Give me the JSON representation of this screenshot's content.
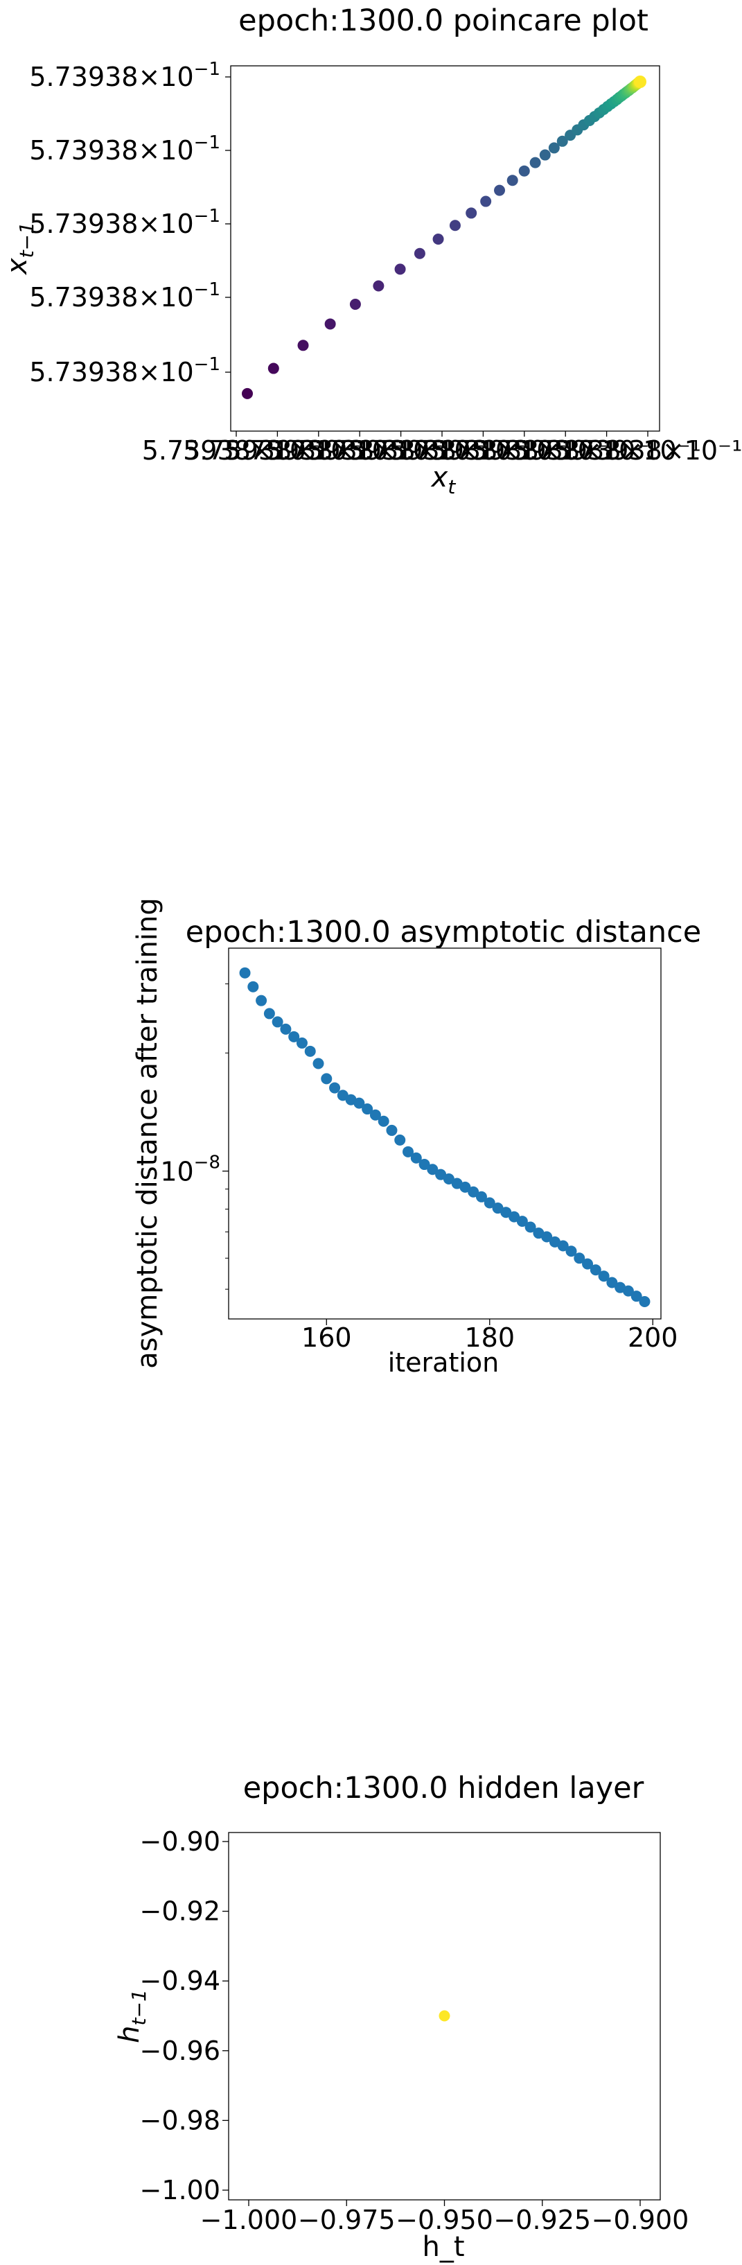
{
  "chart_data": [
    {
      "type": "scatter",
      "title": "epoch:1300.0 poincare plot",
      "xlabel": "x_t",
      "ylabel": "x_{t-1}",
      "xlabel_main": "x",
      "xlabel_sub": "t",
      "ylabel_main": "x",
      "ylabel_sub": "t−1",
      "x": [
        0.0,
        0.0667,
        0.142,
        0.211,
        0.275,
        0.334,
        0.389,
        0.439,
        0.486,
        0.529,
        0.57,
        0.607,
        0.642,
        0.675,
        0.705,
        0.733,
        0.758,
        0.781,
        0.802,
        0.822,
        0.84,
        0.856,
        0.871,
        0.884,
        0.896,
        0.907,
        0.917,
        0.926,
        0.934,
        0.941,
        0.947,
        0.953,
        0.958,
        0.963,
        0.967,
        0.971,
        0.974,
        0.977,
        0.98,
        0.982,
        0.984,
        0.986,
        0.988,
        0.99,
        0.992,
        0.993,
        0.995,
        0.996,
        0.998,
        1.0
      ],
      "y": [
        0.0667,
        0.142,
        0.211,
        0.275,
        0.334,
        0.389,
        0.439,
        0.486,
        0.529,
        0.57,
        0.607,
        0.642,
        0.675,
        0.705,
        0.733,
        0.758,
        0.781,
        0.802,
        0.822,
        0.84,
        0.856,
        0.871,
        0.884,
        0.896,
        0.907,
        0.917,
        0.926,
        0.934,
        0.941,
        0.947,
        0.953,
        0.958,
        0.963,
        0.967,
        0.971,
        0.974,
        0.977,
        0.98,
        0.982,
        0.984,
        0.986,
        0.988,
        0.99,
        0.992,
        0.993,
        0.995,
        0.996,
        0.998,
        0.999,
        1.0
      ],
      "x_tick_labels": [
        "5.73938×10⁻¹",
        "5.73938×10⁻¹",
        "5.73938×10⁻¹",
        "5.73938×10⁻¹",
        "5.73938×10⁻¹",
        "5.73938×10⁻¹",
        "5.73938×10⁻¹",
        "5.73938×10⁻¹",
        "5.73938×10⁻¹",
        "5.73938×10⁻¹",
        "5.73938×10⁻¹"
      ],
      "y_tick_mantissa": "5.73938",
      "y_tick_exponent": "−1",
      "y_tick_count": 5,
      "colormap": "viridis"
    },
    {
      "type": "scatter",
      "title": "epoch:1300.0 asymptotic distance",
      "xlabel": "iteration",
      "ylabel": "asymptotic distance after training",
      "xlim": [
        148,
        201
      ],
      "log_y": true,
      "ylim": [
        4.2e-09,
        3.7e-08
      ],
      "x_ticks": [
        160,
        180,
        200
      ],
      "x_tick_labels": [
        "160",
        "180",
        "200"
      ],
      "y_tick_base": "10",
      "y_tick_exp": "−8",
      "color": "#1f77b4",
      "x": [
        150,
        151,
        152,
        153,
        154,
        155,
        156,
        157,
        158,
        159,
        160,
        161,
        162,
        163,
        164,
        165,
        166,
        167,
        168,
        169,
        170,
        171,
        172,
        173,
        174,
        175,
        176,
        177,
        178,
        179,
        180,
        181,
        182,
        183,
        184,
        185,
        186,
        187,
        188,
        189,
        190,
        191,
        192,
        193,
        194,
        195,
        196,
        197,
        198,
        199
      ],
      "y": [
        3.2e-08,
        2.95e-08,
        2.72e-08,
        2.52e-08,
        2.4e-08,
        2.3e-08,
        2.2e-08,
        2.12e-08,
        2.02e-08,
        1.88e-08,
        1.72e-08,
        1.63e-08,
        1.56e-08,
        1.52e-08,
        1.49e-08,
        1.44e-08,
        1.39e-08,
        1.34e-08,
        1.27e-08,
        1.2e-08,
        1.12e-08,
        1.08e-08,
        1.04e-08,
        1.01e-08,
        9.8e-09,
        9.55e-09,
        9.3e-09,
        9.1e-09,
        8.85e-09,
        8.6e-09,
        8.3e-09,
        8.05e-09,
        7.85e-09,
        7.65e-09,
        7.45e-09,
        7.2e-09,
        6.95e-09,
        6.8e-09,
        6.6e-09,
        6.45e-09,
        6.25e-09,
        6e-09,
        5.8e-09,
        5.6e-09,
        5.4e-09,
        5.2e-09,
        5.05e-09,
        4.95e-09,
        4.8e-09,
        4.65e-09
      ]
    },
    {
      "type": "scatter",
      "title": "epoch:1300.0 hidden layer",
      "xlabel": "h_t",
      "ylabel": "h_{t-1}",
      "ylabel_main": "h",
      "ylabel_sub": "t−1",
      "xlim": [
        -1.0,
        -0.9
      ],
      "ylim": [
        -1.0,
        -0.9
      ],
      "x_ticks": [
        -1.0,
        -0.975,
        -0.95,
        -0.925,
        -0.9
      ],
      "x_tick_labels": [
        "−1.000",
        "−0.975",
        "−0.950",
        "−0.925",
        "−0.900"
      ],
      "y_ticks": [
        -1.0,
        -0.98,
        -0.96,
        -0.94,
        -0.92,
        -0.9
      ],
      "y_tick_labels": [
        "−1.00",
        "−0.98",
        "−0.96",
        "−0.94",
        "−0.92",
        "−0.90"
      ],
      "x": [
        -0.95
      ],
      "y": [
        -0.95
      ],
      "color": "#fde725"
    }
  ]
}
